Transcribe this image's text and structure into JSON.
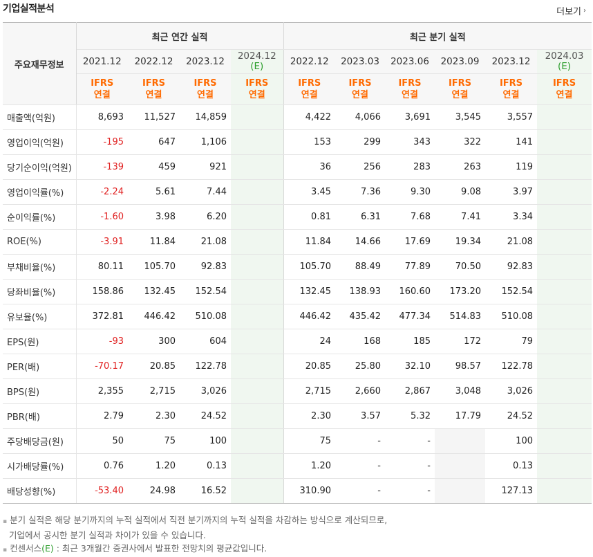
{
  "header": {
    "title": "기업실적분석",
    "more_label": "더보기",
    "more_arrow": "›"
  },
  "table": {
    "row_header_label": "주요재무정보",
    "group_annual": "최근 연간 실적",
    "group_quarterly": "최근 분기 실적",
    "periods": [
      {
        "label": "2021.12",
        "est": false
      },
      {
        "label": "2022.12",
        "est": false
      },
      {
        "label": "2023.12",
        "est": false
      },
      {
        "label": "2024.12",
        "est": true,
        "est_suffix": "(E)"
      },
      {
        "label": "2022.12",
        "est": false
      },
      {
        "label": "2023.03",
        "est": false
      },
      {
        "label": "2023.06",
        "est": false
      },
      {
        "label": "2023.09",
        "est": false
      },
      {
        "label": "2023.12",
        "est": false
      },
      {
        "label": "2024.03",
        "est": true,
        "est_suffix": "(E)"
      }
    ],
    "ifrs_line1": "IFRS",
    "ifrs_line2": "연결",
    "rows": [
      {
        "label": "매출액(억원)",
        "values": [
          "8,693",
          "11,527",
          "14,859",
          "",
          "4,422",
          "4,066",
          "3,691",
          "3,545",
          "3,557",
          ""
        ]
      },
      {
        "label": "영업이익(억원)",
        "values": [
          "-195",
          "647",
          "1,106",
          "",
          "153",
          "299",
          "343",
          "322",
          "141",
          ""
        ]
      },
      {
        "label": "당기순이익(억원)",
        "values": [
          "-139",
          "459",
          "921",
          "",
          "36",
          "256",
          "283",
          "263",
          "119",
          ""
        ]
      },
      {
        "label": "영업이익률(%)",
        "values": [
          "-2.24",
          "5.61",
          "7.44",
          "",
          "3.45",
          "7.36",
          "9.30",
          "9.08",
          "3.97",
          ""
        ]
      },
      {
        "label": "순이익률(%)",
        "values": [
          "-1.60",
          "3.98",
          "6.20",
          "",
          "0.81",
          "6.31",
          "7.68",
          "7.41",
          "3.34",
          ""
        ]
      },
      {
        "label": "ROE(%)",
        "values": [
          "-3.91",
          "11.84",
          "21.08",
          "",
          "11.84",
          "14.66",
          "17.69",
          "19.34",
          "21.08",
          ""
        ]
      },
      {
        "label": "부채비율(%)",
        "values": [
          "80.11",
          "105.70",
          "92.83",
          "",
          "105.70",
          "88.49",
          "77.89",
          "70.50",
          "92.83",
          ""
        ]
      },
      {
        "label": "당좌비율(%)",
        "values": [
          "158.86",
          "132.45",
          "152.54",
          "",
          "132.45",
          "138.93",
          "160.60",
          "173.20",
          "152.54",
          ""
        ]
      },
      {
        "label": "유보율(%)",
        "values": [
          "372.81",
          "446.42",
          "510.08",
          "",
          "446.42",
          "435.42",
          "477.34",
          "514.83",
          "510.08",
          ""
        ]
      },
      {
        "label": "EPS(원)",
        "values": [
          "-93",
          "300",
          "604",
          "",
          "24",
          "168",
          "185",
          "172",
          "79",
          ""
        ]
      },
      {
        "label": "PER(배)",
        "values": [
          "-70.17",
          "20.85",
          "122.78",
          "",
          "20.85",
          "25.80",
          "32.10",
          "98.57",
          "122.78",
          ""
        ]
      },
      {
        "label": "BPS(원)",
        "values": [
          "2,355",
          "2,715",
          "3,026",
          "",
          "2,715",
          "2,660",
          "2,867",
          "3,048",
          "3,026",
          ""
        ]
      },
      {
        "label": "PBR(배)",
        "values": [
          "2.79",
          "2.30",
          "24.52",
          "",
          "2.30",
          "3.57",
          "5.32",
          "17.79",
          "24.52",
          ""
        ]
      },
      {
        "label": "주당배당금(원)",
        "values": [
          "50",
          "75",
          "100",
          "",
          "75",
          "-",
          "-",
          "",
          "100",
          ""
        ]
      },
      {
        "label": "시가배당률(%)",
        "values": [
          "0.76",
          "1.20",
          "0.13",
          "",
          "1.20",
          "-",
          "-",
          "",
          "0.13",
          ""
        ]
      },
      {
        "label": "배당성향(%)",
        "values": [
          "-53.40",
          "24.98",
          "16.52",
          "",
          "310.90",
          "-",
          "-",
          "",
          "127.13",
          ""
        ]
      }
    ]
  },
  "notes": {
    "line1": "분기 실적은 해당 분기까지의 누적 실적에서 직전 분기까지의 누적 실적을 차감하는 방식으로 계산되므로,",
    "line2": "기업에서 공시한 분기 실적과 차이가 있을 수 있습니다.",
    "line3_pre": "컨센서스",
    "line3_e": "(E)",
    "line3_post": ": 최근 3개월간 증권사에서 발표한 전망치의 평균값입니다.",
    "bullet": "▪"
  },
  "colors": {
    "negative": "#e02020",
    "ifrs": "#ff6a00",
    "estimate_bg": "#f0f7f0",
    "estimate_text": "#2a9d2a"
  }
}
